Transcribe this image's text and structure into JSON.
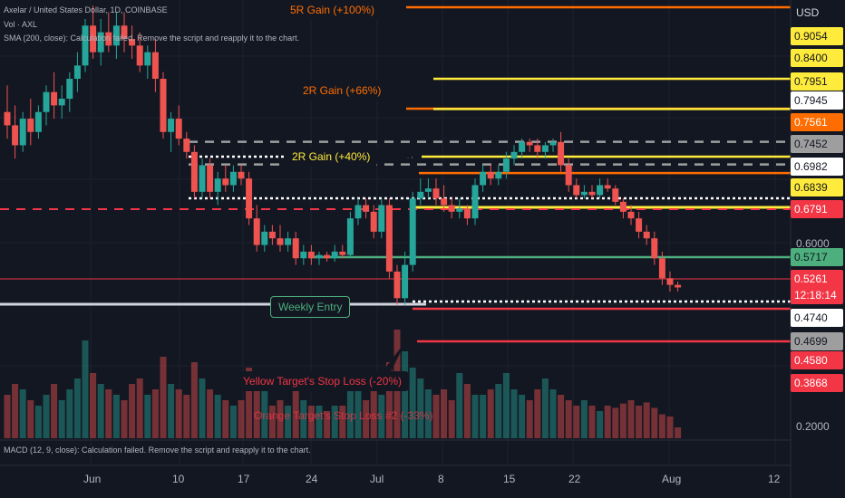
{
  "header": {
    "title": "Axelar / United States Dollar, 1D, COINBASE",
    "vol": "Vol · AXL",
    "sma": "SMA (200, close): Calculation failed. Remove the script and reapply it to the chart."
  },
  "macd_text": "MACD (12, 9, close): Calculation failed. Remove the script and reapply it to the chart.",
  "currency": "USD",
  "price_axis_ticks": [
    "0.6000",
    "0.2000"
  ],
  "price_tags": [
    {
      "text": "0.9054",
      "bg": "#ffeb3b",
      "fg": "#131722"
    },
    {
      "text": "0.8400",
      "bg": "#ffeb3b",
      "fg": "#131722"
    },
    {
      "text": "0.7951",
      "bg": "#ffeb3b",
      "fg": "#131722"
    },
    {
      "text": "0.7945",
      "bg": "#ffffff",
      "fg": "#131722"
    },
    {
      "text": "0.7561",
      "bg": "#ff6d00",
      "fg": "#ffffff"
    },
    {
      "text": "0.7452",
      "bg": "#9e9e9e",
      "fg": "#131722"
    },
    {
      "text": "0.6982",
      "bg": "#ffffff",
      "fg": "#131722"
    },
    {
      "text": "0.6839",
      "bg": "#ffeb3b",
      "fg": "#131722"
    },
    {
      "text": "0.6791",
      "bg": "#f23645",
      "fg": "#ffffff"
    },
    {
      "text": "0.5717",
      "bg": "#4caf7d",
      "fg": "#131722"
    },
    {
      "text": "0.5261",
      "bg": "#f23645",
      "fg": "#ffffff"
    },
    {
      "text": "12:18:14",
      "bg": "#f23645",
      "fg": "#ffffff"
    },
    {
      "text": "0.4740",
      "bg": "#ffffff",
      "fg": "#131722"
    },
    {
      "text": "0.4699",
      "bg": "#9e9e9e",
      "fg": "#131722"
    },
    {
      "text": "0.4580",
      "bg": "#f23645",
      "fg": "#ffffff"
    },
    {
      "text": "0.3868",
      "bg": "#f23645",
      "fg": "#ffffff"
    }
  ],
  "time_axis": [
    "Jun",
    "10",
    "17",
    "24",
    "Jul",
    "8",
    "15",
    "22",
    "Aug",
    "12"
  ],
  "annotations": {
    "r5": "5R Gain (+100%)",
    "r2_orange": "2R Gain (+66%)",
    "r2_yellow": "2R Gain (+40%)",
    "weekly_entry": "Weekly Entry",
    "yellow_stop": "Yellow Target's Stop Loss (-20%)",
    "orange_stop": "Orange Target's Stop Loss #2 (-33%)"
  },
  "colors": {
    "up": "#26a69a",
    "down": "#ef5350",
    "yellow": "#ffeb3b",
    "orange": "#ff6d00",
    "red": "#f23645",
    "entry": "#4caf7d"
  },
  "chart_data": {
    "type": "candlestick",
    "candles": [
      {
        "o": 0.79,
        "h": 0.83,
        "l": 0.75,
        "c": 0.77
      },
      {
        "o": 0.77,
        "h": 0.8,
        "l": 0.72,
        "c": 0.74
      },
      {
        "o": 0.74,
        "h": 0.79,
        "l": 0.73,
        "c": 0.78
      },
      {
        "o": 0.78,
        "h": 0.81,
        "l": 0.74,
        "c": 0.76
      },
      {
        "o": 0.76,
        "h": 0.8,
        "l": 0.75,
        "c": 0.79
      },
      {
        "o": 0.79,
        "h": 0.83,
        "l": 0.77,
        "c": 0.82
      },
      {
        "o": 0.82,
        "h": 0.85,
        "l": 0.78,
        "c": 0.8
      },
      {
        "o": 0.8,
        "h": 0.83,
        "l": 0.78,
        "c": 0.81
      },
      {
        "o": 0.81,
        "h": 0.85,
        "l": 0.79,
        "c": 0.84
      },
      {
        "o": 0.84,
        "h": 0.88,
        "l": 0.82,
        "c": 0.86
      },
      {
        "o": 0.86,
        "h": 0.93,
        "l": 0.85,
        "c": 0.92
      },
      {
        "o": 0.92,
        "h": 0.95,
        "l": 0.87,
        "c": 0.88
      },
      {
        "o": 0.88,
        "h": 0.93,
        "l": 0.86,
        "c": 0.91
      },
      {
        "o": 0.91,
        "h": 0.94,
        "l": 0.88,
        "c": 0.89
      },
      {
        "o": 0.89,
        "h": 0.94,
        "l": 0.87,
        "c": 0.92
      },
      {
        "o": 0.92,
        "h": 0.94,
        "l": 0.88,
        "c": 0.9
      },
      {
        "o": 0.9,
        "h": 0.92,
        "l": 0.87,
        "c": 0.89
      },
      {
        "o": 0.89,
        "h": 0.91,
        "l": 0.85,
        "c": 0.86
      },
      {
        "o": 0.86,
        "h": 0.89,
        "l": 0.84,
        "c": 0.88
      },
      {
        "o": 0.88,
        "h": 0.9,
        "l": 0.82,
        "c": 0.84
      },
      {
        "o": 0.84,
        "h": 0.85,
        "l": 0.75,
        "c": 0.76
      },
      {
        "o": 0.76,
        "h": 0.79,
        "l": 0.73,
        "c": 0.78
      },
      {
        "o": 0.78,
        "h": 0.8,
        "l": 0.74,
        "c": 0.75
      },
      {
        "o": 0.75,
        "h": 0.76,
        "l": 0.72,
        "c": 0.73
      },
      {
        "o": 0.73,
        "h": 0.74,
        "l": 0.66,
        "c": 0.67
      },
      {
        "o": 0.67,
        "h": 0.72,
        "l": 0.66,
        "c": 0.71
      },
      {
        "o": 0.71,
        "h": 0.72,
        "l": 0.66,
        "c": 0.67
      },
      {
        "o": 0.67,
        "h": 0.7,
        "l": 0.65,
        "c": 0.69
      },
      {
        "o": 0.69,
        "h": 0.71,
        "l": 0.67,
        "c": 0.68
      },
      {
        "o": 0.68,
        "h": 0.71,
        "l": 0.67,
        "c": 0.7
      },
      {
        "o": 0.7,
        "h": 0.71,
        "l": 0.68,
        "c": 0.69
      },
      {
        "o": 0.69,
        "h": 0.7,
        "l": 0.62,
        "c": 0.63
      },
      {
        "o": 0.63,
        "h": 0.65,
        "l": 0.58,
        "c": 0.59
      },
      {
        "o": 0.59,
        "h": 0.62,
        "l": 0.58,
        "c": 0.61
      },
      {
        "o": 0.61,
        "h": 0.62,
        "l": 0.59,
        "c": 0.6
      },
      {
        "o": 0.6,
        "h": 0.62,
        "l": 0.58,
        "c": 0.59
      },
      {
        "o": 0.59,
        "h": 0.61,
        "l": 0.58,
        "c": 0.6
      },
      {
        "o": 0.6,
        "h": 0.61,
        "l": 0.56,
        "c": 0.57
      },
      {
        "o": 0.57,
        "h": 0.59,
        "l": 0.56,
        "c": 0.58
      },
      {
        "o": 0.58,
        "h": 0.59,
        "l": 0.56,
        "c": 0.57
      },
      {
        "o": 0.57,
        "h": 0.58,
        "l": 0.56,
        "c": 0.575
      },
      {
        "o": 0.575,
        "h": 0.58,
        "l": 0.565,
        "c": 0.57
      },
      {
        "o": 0.57,
        "h": 0.59,
        "l": 0.565,
        "c": 0.58
      },
      {
        "o": 0.58,
        "h": 0.59,
        "l": 0.57,
        "c": 0.575
      },
      {
        "o": 0.575,
        "h": 0.64,
        "l": 0.57,
        "c": 0.63
      },
      {
        "o": 0.63,
        "h": 0.66,
        "l": 0.62,
        "c": 0.65
      },
      {
        "o": 0.65,
        "h": 0.66,
        "l": 0.63,
        "c": 0.64
      },
      {
        "o": 0.64,
        "h": 0.65,
        "l": 0.6,
        "c": 0.61
      },
      {
        "o": 0.61,
        "h": 0.66,
        "l": 0.6,
        "c": 0.65
      },
      {
        "o": 0.65,
        "h": 0.66,
        "l": 0.54,
        "c": 0.55
      },
      {
        "o": 0.55,
        "h": 0.56,
        "l": 0.5,
        "c": 0.51
      },
      {
        "o": 0.51,
        "h": 0.58,
        "l": 0.5,
        "c": 0.56
      },
      {
        "o": 0.56,
        "h": 0.67,
        "l": 0.55,
        "c": 0.66
      },
      {
        "o": 0.66,
        "h": 0.69,
        "l": 0.65,
        "c": 0.67
      },
      {
        "o": 0.67,
        "h": 0.69,
        "l": 0.66,
        "c": 0.675
      },
      {
        "o": 0.675,
        "h": 0.69,
        "l": 0.65,
        "c": 0.66
      },
      {
        "o": 0.66,
        "h": 0.68,
        "l": 0.64,
        "c": 0.65
      },
      {
        "o": 0.65,
        "h": 0.66,
        "l": 0.63,
        "c": 0.64
      },
      {
        "o": 0.64,
        "h": 0.66,
        "l": 0.63,
        "c": 0.645
      },
      {
        "o": 0.645,
        "h": 0.65,
        "l": 0.62,
        "c": 0.63
      },
      {
        "o": 0.63,
        "h": 0.69,
        "l": 0.62,
        "c": 0.68
      },
      {
        "o": 0.68,
        "h": 0.71,
        "l": 0.67,
        "c": 0.7
      },
      {
        "o": 0.7,
        "h": 0.71,
        "l": 0.68,
        "c": 0.69
      },
      {
        "o": 0.69,
        "h": 0.71,
        "l": 0.68,
        "c": 0.7
      },
      {
        "o": 0.7,
        "h": 0.73,
        "l": 0.69,
        "c": 0.72
      },
      {
        "o": 0.72,
        "h": 0.74,
        "l": 0.71,
        "c": 0.73
      },
      {
        "o": 0.73,
        "h": 0.75,
        "l": 0.72,
        "c": 0.745
      },
      {
        "o": 0.745,
        "h": 0.75,
        "l": 0.73,
        "c": 0.74
      },
      {
        "o": 0.74,
        "h": 0.75,
        "l": 0.72,
        "c": 0.73
      },
      {
        "o": 0.73,
        "h": 0.745,
        "l": 0.72,
        "c": 0.74
      },
      {
        "o": 0.74,
        "h": 0.75,
        "l": 0.73,
        "c": 0.745
      },
      {
        "o": 0.745,
        "h": 0.76,
        "l": 0.7,
        "c": 0.71
      },
      {
        "o": 0.71,
        "h": 0.72,
        "l": 0.67,
        "c": 0.68
      },
      {
        "o": 0.68,
        "h": 0.69,
        "l": 0.66,
        "c": 0.665
      },
      {
        "o": 0.665,
        "h": 0.68,
        "l": 0.66,
        "c": 0.67
      },
      {
        "o": 0.67,
        "h": 0.68,
        "l": 0.66,
        "c": 0.665
      },
      {
        "o": 0.665,
        "h": 0.69,
        "l": 0.66,
        "c": 0.68
      },
      {
        "o": 0.68,
        "h": 0.69,
        "l": 0.67,
        "c": 0.675
      },
      {
        "o": 0.675,
        "h": 0.68,
        "l": 0.65,
        "c": 0.655
      },
      {
        "o": 0.655,
        "h": 0.66,
        "l": 0.63,
        "c": 0.64
      },
      {
        "o": 0.64,
        "h": 0.65,
        "l": 0.62,
        "c": 0.63
      },
      {
        "o": 0.63,
        "h": 0.64,
        "l": 0.6,
        "c": 0.61
      },
      {
        "o": 0.61,
        "h": 0.62,
        "l": 0.59,
        "c": 0.6
      },
      {
        "o": 0.6,
        "h": 0.61,
        "l": 0.56,
        "c": 0.57
      },
      {
        "o": 0.57,
        "h": 0.58,
        "l": 0.53,
        "c": 0.54
      },
      {
        "o": 0.54,
        "h": 0.55,
        "l": 0.52,
        "c": 0.53
      },
      {
        "o": 0.53,
        "h": 0.535,
        "l": 0.52,
        "c": 0.5261
      }
    ],
    "volumes": [
      0.4,
      0.5,
      0.45,
      0.35,
      0.3,
      0.4,
      0.5,
      0.35,
      0.45,
      0.55,
      0.9,
      0.6,
      0.5,
      0.45,
      0.4,
      0.35,
      0.5,
      0.55,
      0.4,
      0.45,
      0.75,
      0.5,
      0.45,
      0.4,
      0.7,
      0.55,
      0.45,
      0.4,
      0.35,
      0.3,
      0.35,
      0.65,
      0.6,
      0.45,
      0.3,
      0.35,
      0.3,
      0.45,
      0.35,
      0.3,
      0.3,
      0.25,
      0.3,
      0.3,
      0.55,
      0.45,
      0.35,
      0.5,
      0.4,
      0.7,
      1.0,
      0.8,
      0.65,
      0.55,
      0.45,
      0.4,
      0.45,
      0.35,
      0.6,
      0.5,
      0.4,
      0.4,
      0.45,
      0.5,
      0.6,
      0.45,
      0.4,
      0.35,
      0.45,
      0.55,
      0.45,
      0.4,
      0.35,
      0.3,
      0.35,
      0.3,
      0.25,
      0.3,
      0.28,
      0.32,
      0.35,
      0.3,
      0.33,
      0.28,
      0.22,
      0.2,
      0.1
    ],
    "price_lines": [
      0.9054,
      0.84,
      0.7951,
      0.7945,
      0.7561,
      0.7452,
      0.6982,
      0.6839,
      0.6791,
      0.5717,
      0.474,
      0.458,
      0.3868
    ],
    "ylabel_unit": "USD"
  }
}
